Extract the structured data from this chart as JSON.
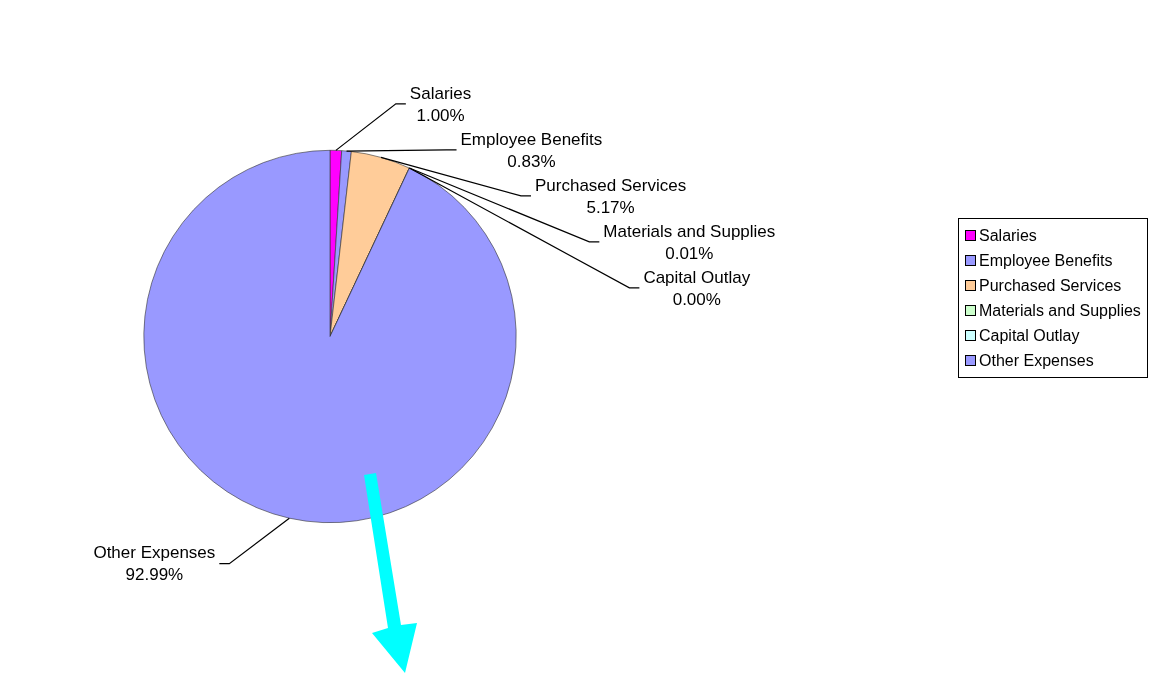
{
  "chart_data": {
    "type": "pie",
    "categories": [
      "Salaries",
      "Employee Benefits",
      "Purchased Services",
      "Materials and Supplies",
      "Capital Outlay",
      "Other Expenses"
    ],
    "values": [
      1.0,
      0.83,
      5.17,
      0.01,
      0.0,
      92.99
    ],
    "value_labels": [
      "1.00%",
      "0.83%",
      "5.17%",
      "0.01%",
      "0.00%",
      "92.99%"
    ],
    "colors": [
      "#ff00ff",
      "#9999ff",
      "#ffcc99",
      "#ccffcc",
      "#ccffff",
      "#9999ff"
    ],
    "legend": "right"
  }
}
